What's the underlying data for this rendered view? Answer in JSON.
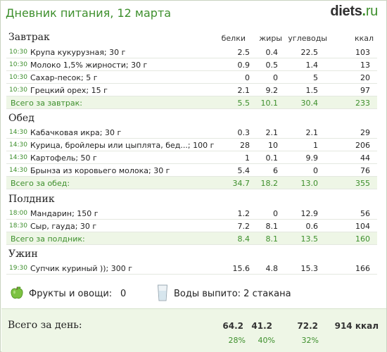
{
  "header": {
    "title": "Дневник питания, 12 марта",
    "brand_main": "diets",
    "brand_dot": ".",
    "brand_tld": "ru"
  },
  "columns": {
    "protein": "белки",
    "fat": "жиры",
    "carbs": "углеводы",
    "kcal": "ккал"
  },
  "meals": [
    {
      "name": "Завтрак",
      "items": [
        {
          "time": "10:30",
          "name": "Крупа кукурузная; 30 г",
          "protein": "2.5",
          "fat": "0.4",
          "carbs": "22.5",
          "kcal": "103"
        },
        {
          "time": "10:30",
          "name": "Молоко 1,5% жирности; 30 г",
          "protein": "0.9",
          "fat": "0.5",
          "carbs": "1.4",
          "kcal": "13"
        },
        {
          "time": "10:30",
          "name": "Сахар-песок; 5 г",
          "protein": "0",
          "fat": "0",
          "carbs": "5",
          "kcal": "20"
        },
        {
          "time": "10:30",
          "name": "Грецкий орех; 15 г",
          "protein": "2.1",
          "fat": "9.2",
          "carbs": "1.5",
          "kcal": "97"
        }
      ],
      "total": {
        "label": "Всего за завтрак:",
        "protein": "5.5",
        "fat": "10.1",
        "carbs": "30.4",
        "kcal": "233"
      }
    },
    {
      "name": "Обед",
      "items": [
        {
          "time": "14:30",
          "name": "Кабачковая икра; 30 г",
          "protein": "0.3",
          "fat": "2.1",
          "carbs": "2.1",
          "kcal": "29"
        },
        {
          "time": "14:30",
          "name": "Курица, бройлеры или цыплята, бед...; 100 г",
          "protein": "28",
          "fat": "10",
          "carbs": "1",
          "kcal": "206"
        },
        {
          "time": "14:30",
          "name": "Картофель; 50 г",
          "protein": "1",
          "fat": "0.1",
          "carbs": "9.9",
          "kcal": "44"
        },
        {
          "time": "14:30",
          "name": "Брынза из коровьего молока; 30 г",
          "protein": "5.4",
          "fat": "6",
          "carbs": "0",
          "kcal": "76"
        }
      ],
      "total": {
        "label": "Всего за обед:",
        "protein": "34.7",
        "fat": "18.2",
        "carbs": "13.0",
        "kcal": "355"
      }
    },
    {
      "name": "Полдник",
      "items": [
        {
          "time": "18:00",
          "name": "Мандарин; 150 г",
          "protein": "1.2",
          "fat": "0",
          "carbs": "12.9",
          "kcal": "56"
        },
        {
          "time": "18:30",
          "name": "Сыр, гауда; 30 г",
          "protein": "7.2",
          "fat": "8.1",
          "carbs": "0.6",
          "kcal": "104"
        }
      ],
      "total": {
        "label": "Всего за полдник:",
        "protein": "8.4",
        "fat": "8.1",
        "carbs": "13.5",
        "kcal": "160"
      }
    },
    {
      "name": "Ужин",
      "items": [
        {
          "time": "19:30",
          "name": "Супчик куриный )); 300 г",
          "protein": "15.6",
          "fat": "4.8",
          "carbs": "15.3",
          "kcal": "166"
        }
      ]
    }
  ],
  "extras": {
    "fruits_label": "Фрукты и овощи:",
    "fruits_value": "0",
    "water_label": "Воды выпито: 2 стакана",
    "apple_icon": "apple-icon",
    "glass_icon": "water-glass-icon",
    "apple_color": "#7cc242"
  },
  "day_total": {
    "label": "Всего за день:",
    "protein": "64.2",
    "fat": "41.2",
    "carbs": "72.2",
    "kcal": "914 ккал",
    "protein_pct": "28%",
    "fat_pct": "40%",
    "carbs_pct": "32%"
  },
  "colors": {
    "accent": "#3d8f2c",
    "total_bg": "#eef6e6",
    "border": "#c9d3c0"
  }
}
